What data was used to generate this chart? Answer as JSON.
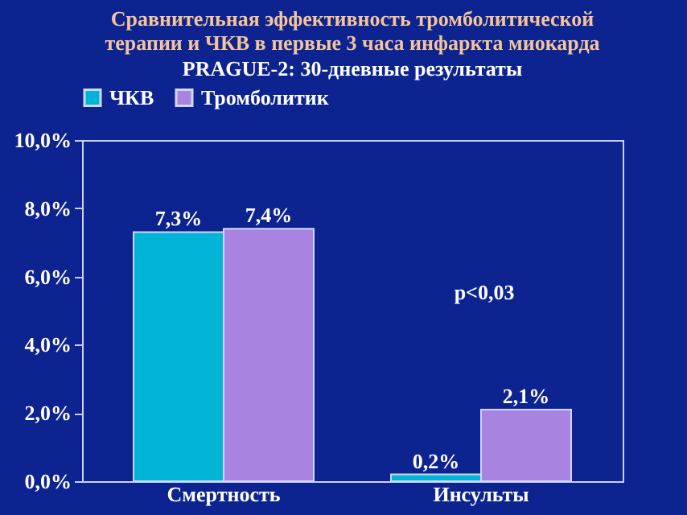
{
  "chart_data": {
    "type": "bar",
    "title": "Сравнительная эффективность тромболитической терапии и ЧКВ в первые 3 часа инфаркта миокарда",
    "subtitle": "PRAGUE-2: 30-дневные результаты",
    "categories": [
      "Смертность",
      "Инсульты"
    ],
    "series": [
      {
        "name": "ЧКВ",
        "color": "#00b4d8",
        "values": [
          7.3,
          0.2
        ],
        "value_labels": [
          "7,3%",
          "0,2%"
        ]
      },
      {
        "name": "Тромболитик",
        "color": "#a884e0",
        "values": [
          7.4,
          2.1
        ],
        "value_labels": [
          "7,4%",
          "2,1%"
        ]
      }
    ],
    "ylim": [
      0,
      10
    ],
    "yticks": [
      {
        "value": 0,
        "label": "0,0%"
      },
      {
        "value": 2,
        "label": "2,0%"
      },
      {
        "value": 4,
        "label": "4,0%"
      },
      {
        "value": 6,
        "label": "6,0%"
      },
      {
        "value": 8,
        "label": "8,0%"
      },
      {
        "value": 10,
        "label": "10,0%"
      }
    ],
    "annotations": [
      "p<0,03"
    ],
    "legend": "top",
    "grid": false
  }
}
